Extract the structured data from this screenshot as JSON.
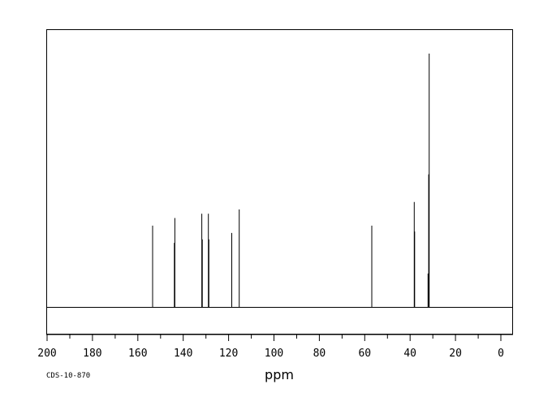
{
  "chart_data": {
    "type": "line",
    "xlabel": "ppm",
    "ylabel": "",
    "xlim": [
      200,
      -5
    ],
    "ylim": [
      -0.1,
      1.0
    ],
    "x_reversed": true,
    "grid": false,
    "xticks": [
      200,
      180,
      160,
      140,
      120,
      100,
      80,
      60,
      40,
      20,
      0
    ],
    "peaks": [
      {
        "x": 153.5,
        "y": 0.322
      },
      {
        "x": 143.7,
        "y": 0.352
      },
      {
        "x": 143.9,
        "y": 0.254
      },
      {
        "x": 131.8,
        "y": 0.369
      },
      {
        "x": 131.6,
        "y": 0.268
      },
      {
        "x": 128.9,
        "y": 0.369
      },
      {
        "x": 128.7,
        "y": 0.268
      },
      {
        "x": 118.6,
        "y": 0.293
      },
      {
        "x": 115.3,
        "y": 0.386
      },
      {
        "x": 56.9,
        "y": 0.322
      },
      {
        "x": 38.2,
        "y": 0.415
      },
      {
        "x": 38.0,
        "y": 0.299
      },
      {
        "x": 31.6,
        "y": 1.0
      },
      {
        "x": 31.8,
        "y": 0.524
      },
      {
        "x": 32.1,
        "y": 0.133
      }
    ]
  },
  "sample_id": "CDS-10-870"
}
